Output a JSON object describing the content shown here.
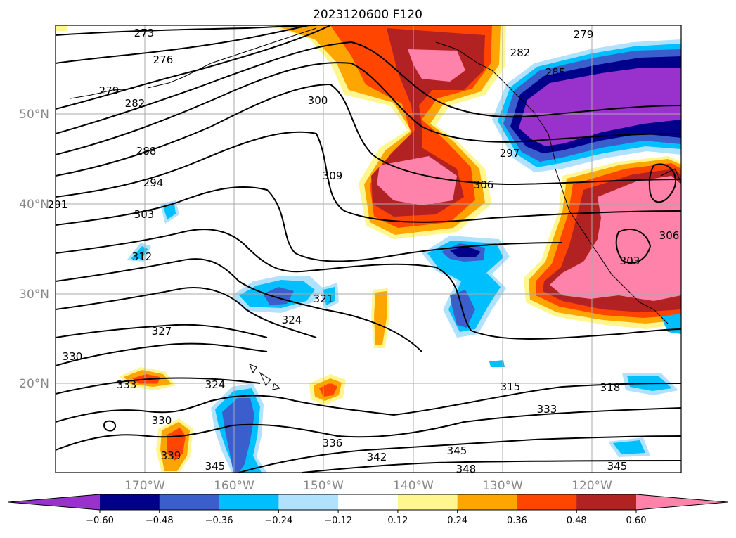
{
  "title": "2023120600 F120",
  "lat_labels": [
    "50°N",
    "40°N",
    "30°N",
    "20°N"
  ],
  "lon_labels": [
    "170°W",
    "160°W",
    "150°W",
    "140°W",
    "130°W",
    "120°W"
  ],
  "colorbar": {
    "colors": [
      "#9932cc",
      "#00008b",
      "#3a5fcd",
      "#00bfff",
      "#b0e2ff",
      "#ffffff",
      "#fff68f",
      "#ffa500",
      "#ff4500",
      "#b22222",
      "#ff82ab"
    ],
    "tick_labels": [
      "−0.60",
      "−0.48",
      "−0.36",
      "−0.24",
      "−0.12",
      "0.12",
      "0.24",
      "0.36",
      "0.48",
      "0.60"
    ]
  },
  "contour_labels": [
    "273",
    "276",
    "279",
    "282",
    "288",
    "294",
    "303",
    "312",
    "300",
    "309",
    "279",
    "282",
    "285",
    "297",
    "306",
    "321",
    "324",
    "327",
    "330",
    "333",
    "324",
    "330",
    "339",
    "345",
    "336",
    "342",
    "345",
    "348",
    "315",
    "333",
    "318",
    "345",
    "303",
    "291",
    "306"
  ]
}
